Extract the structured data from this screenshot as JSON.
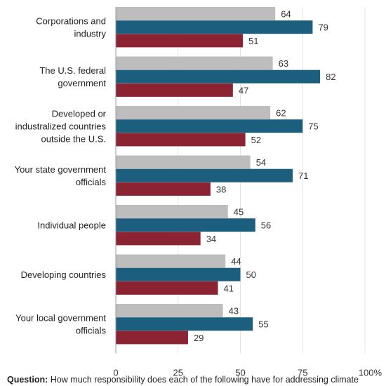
{
  "chart_data": {
    "type": "bar",
    "orientation": "horizontal",
    "categories": [
      "Corporations and\nindustry",
      "The U.S. federal\ngovernment",
      "Developed or\nindustralized countries\noutside the U.S.",
      "Your state government\nofficials",
      "Individual people",
      "Developing countries",
      "Your local government\nofficials"
    ],
    "series": [
      {
        "values": [
          64,
          63,
          62,
          54,
          45,
          44,
          43
        ],
        "color": "#bdbdbd"
      },
      {
        "values": [
          79,
          82,
          75,
          71,
          56,
          50,
          55
        ],
        "color": "#1b5e7e"
      },
      {
        "values": [
          51,
          47,
          52,
          38,
          34,
          41,
          29
        ],
        "color": "#8b2332"
      }
    ],
    "xlim": [
      0,
      100
    ],
    "xticks": [
      0,
      25,
      50,
      75,
      100
    ],
    "xtick_labels": [
      "0",
      "25",
      "50",
      "75",
      "100%"
    ],
    "grid": true,
    "data_labels": true
  },
  "footnote": {
    "label": "Question:",
    "text": " How much responsibility does each of the following have for addressing climate"
  }
}
